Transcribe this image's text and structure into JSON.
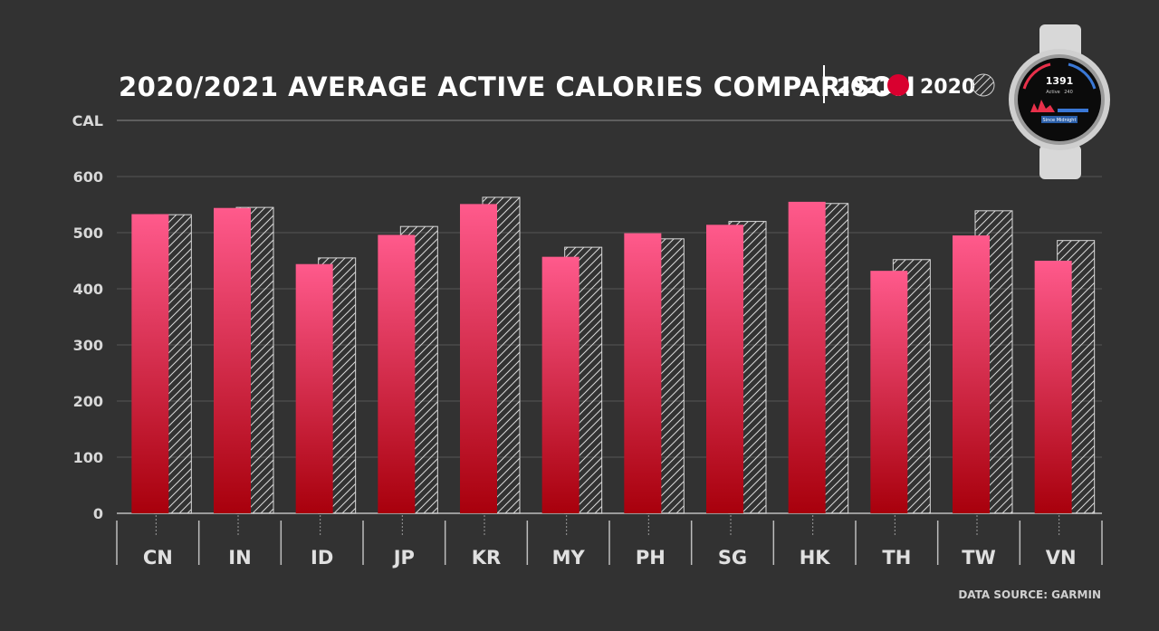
{
  "chart_data": {
    "type": "bar",
    "title": "2020/2021 AVERAGE ACTIVE CALORIES COMPARISON",
    "ylabel": "CAL",
    "xlabel": "",
    "ylim": [
      0,
      700
    ],
    "yticks": [
      0,
      100,
      200,
      300,
      400,
      500,
      600
    ],
    "grid": true,
    "legend_position": "top-right",
    "categories": [
      "CN",
      "IN",
      "ID",
      "JP",
      "KR",
      "MY",
      "PH",
      "SG",
      "HK",
      "TH",
      "TW",
      "VN"
    ],
    "series": [
      {
        "name": "2021",
        "style": "solid-gradient",
        "color_top": "#ff5a8c",
        "color_bottom": "#a8000c",
        "values": [
          533,
          544,
          444,
          496,
          551,
          457,
          499,
          514,
          555,
          432,
          495,
          450
        ]
      },
      {
        "name": "2020",
        "style": "hatched-outline",
        "color": "#ffffff",
        "values": [
          532,
          545,
          455,
          511,
          563,
          474,
          489,
          520,
          552,
          452,
          539,
          486
        ]
      }
    ],
    "source": "DATA SOURCE: GARMIN"
  },
  "watch": {
    "icon": "smartwatch-icon",
    "calories": "1391",
    "active_label": "Active",
    "active_value": "240",
    "footer_label": "Since Midnight"
  }
}
